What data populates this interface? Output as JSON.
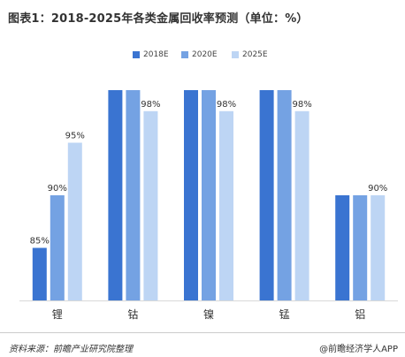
{
  "title": "图表1：2018-2025年各类金属回收率预测（单位：%）",
  "source": "资料来源：前瞻产业研究院整理",
  "credit": "@前瞻经济学人APP",
  "chart_data": {
    "type": "bar",
    "categories": [
      "锂",
      "钴",
      "镍",
      "锰",
      "铝"
    ],
    "series": [
      {
        "name": "2018E",
        "color": "#3a74d1",
        "values": [
          85,
          100,
          100,
          100,
          90
        ],
        "labels": [
          "85%",
          "",
          "",
          "",
          ""
        ]
      },
      {
        "name": "2020E",
        "color": "#74a2e3",
        "values": [
          90,
          100,
          100,
          100,
          90
        ],
        "labels": [
          "90%",
          "",
          "",
          "",
          ""
        ]
      },
      {
        "name": "2025E",
        "color": "#bdd5f4",
        "values": [
          95,
          98,
          98,
          98,
          90
        ],
        "labels": [
          "95%",
          "98%",
          "98%",
          "98%",
          "90%"
        ]
      }
    ],
    "ylim": [
      80,
      100
    ],
    "grid": false,
    "legend": "top-center",
    "xlabel": "",
    "ylabel": ""
  }
}
